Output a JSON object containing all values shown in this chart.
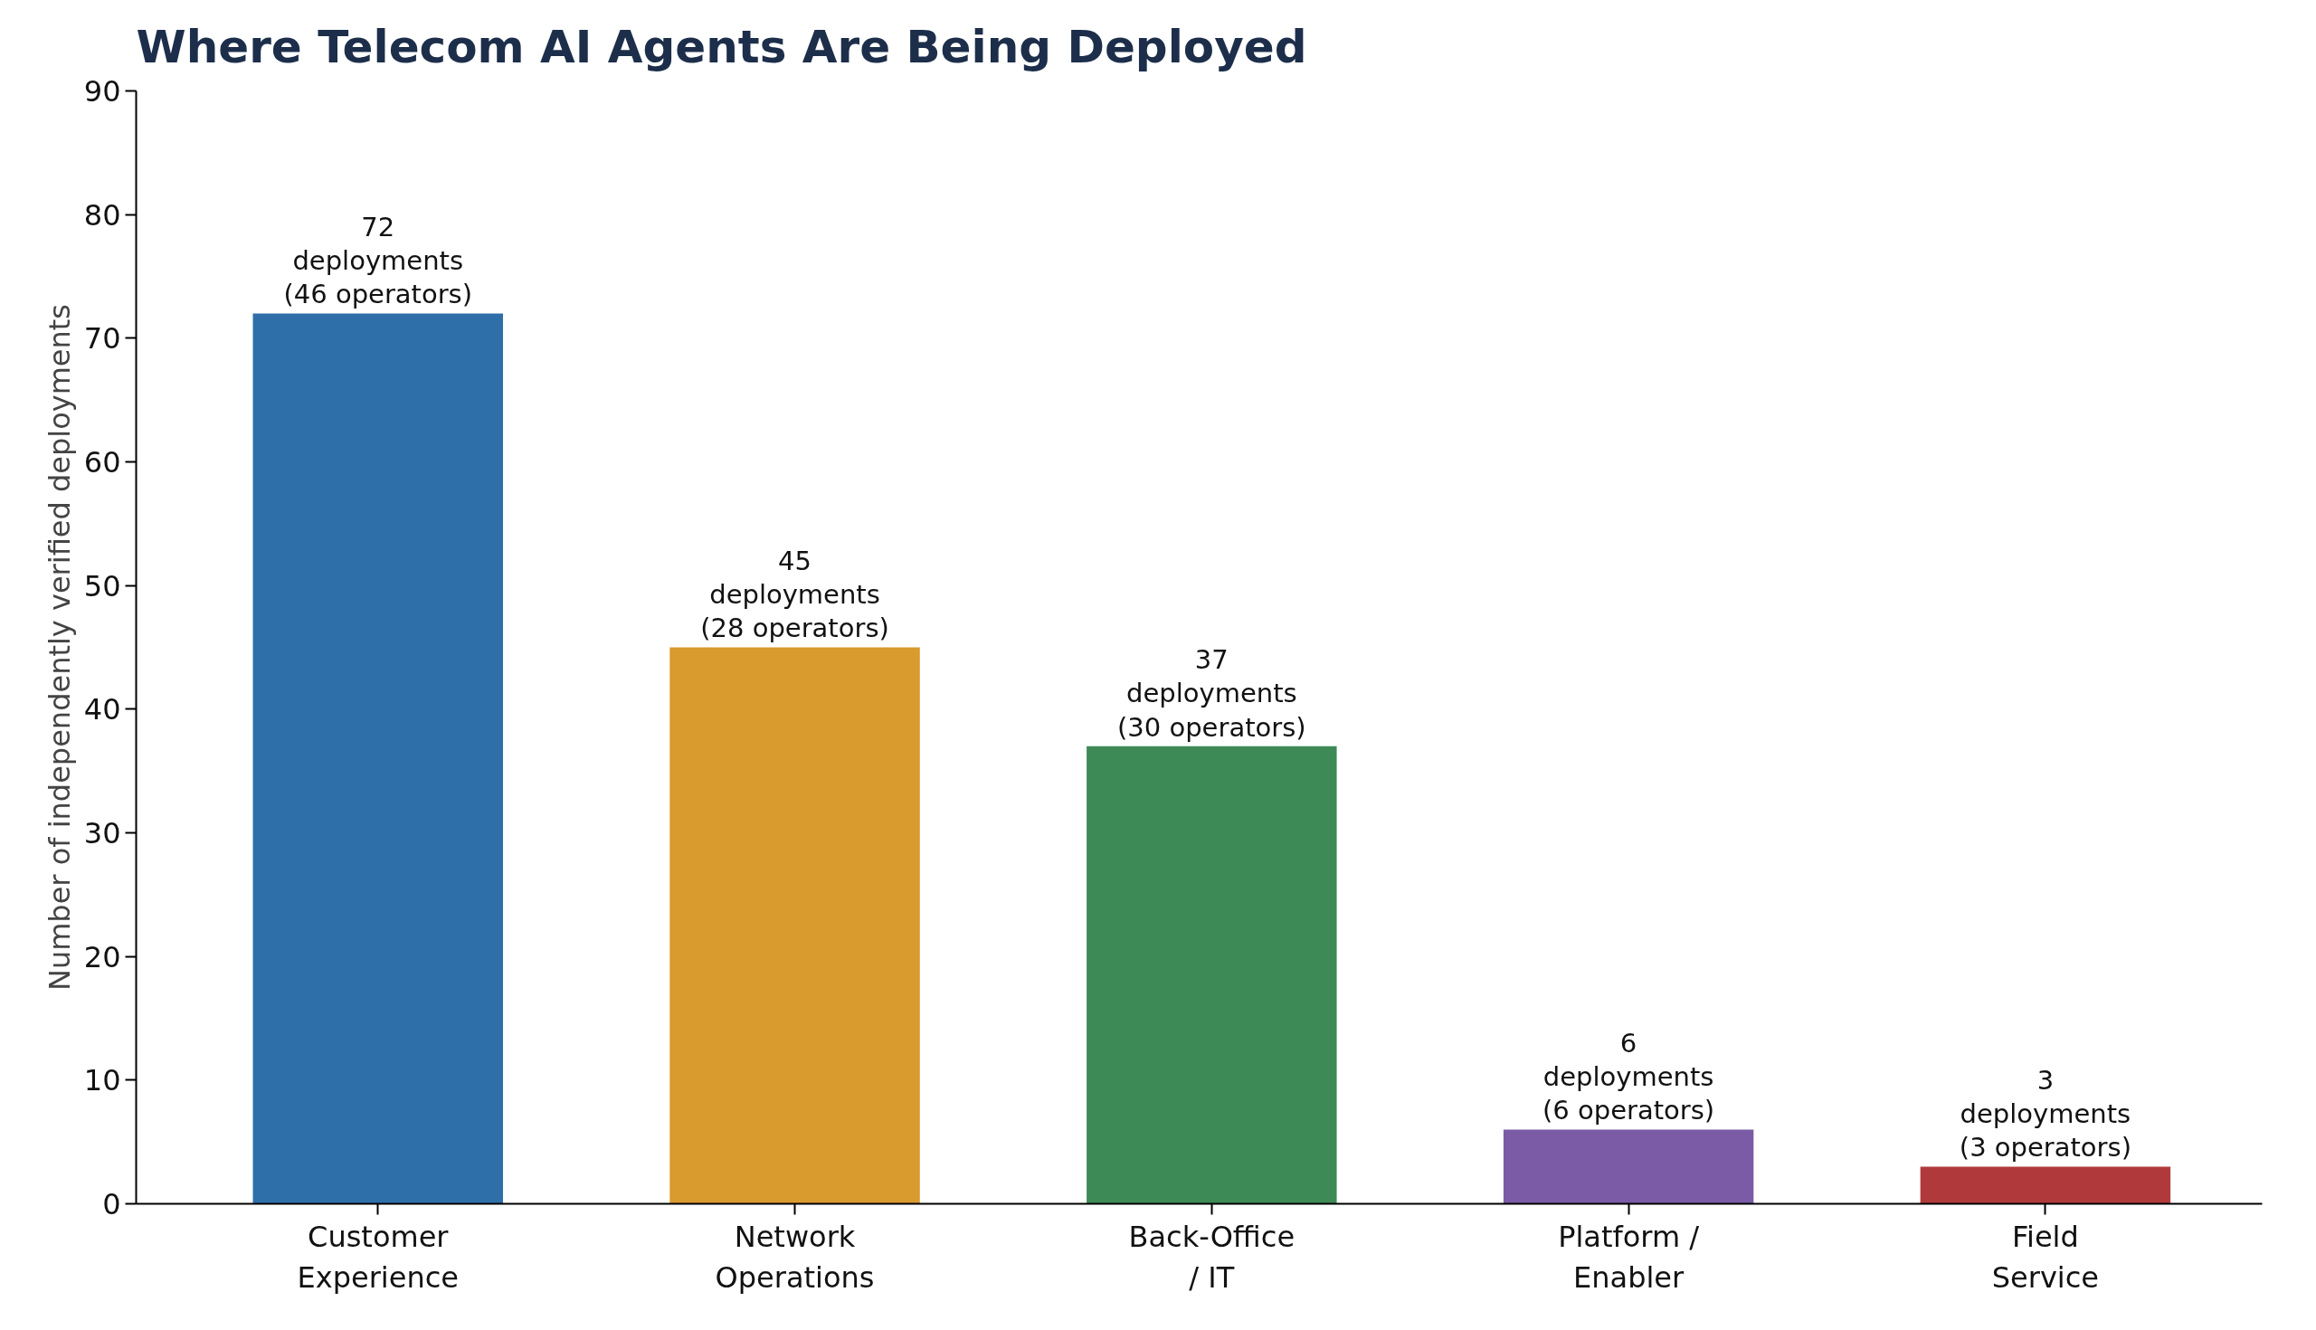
{
  "chart_data": {
    "type": "bar",
    "title": "Where Telecom AI Agents Are Being Deployed",
    "ylabel": "Number of independently verified deployments",
    "categories": [
      "Customer\nExperience",
      "Network\nOperations",
      "Back-Office\n/ IT",
      "Platform /\nEnabler",
      "Field\nService"
    ],
    "values": [
      72,
      45,
      37,
      6,
      3
    ],
    "colors": [
      "#2f6fa9",
      "#d99a2e",
      "#3e8a56",
      "#7b5ba6",
      "#b03a3b"
    ],
    "value_labels": [
      "72\ndeployments\n(46 operators)",
      "45\ndeployments\n(28 operators)",
      "37\ndeployments\n(30 operators)",
      "6\ndeployments\n(6 operators)",
      "3\ndeployments\n(3 operators)"
    ],
    "ylim": [
      0,
      90
    ],
    "yticks": [
      0,
      10,
      20,
      30,
      40,
      50,
      60,
      70,
      80,
      90
    ],
    "grid": false
  }
}
